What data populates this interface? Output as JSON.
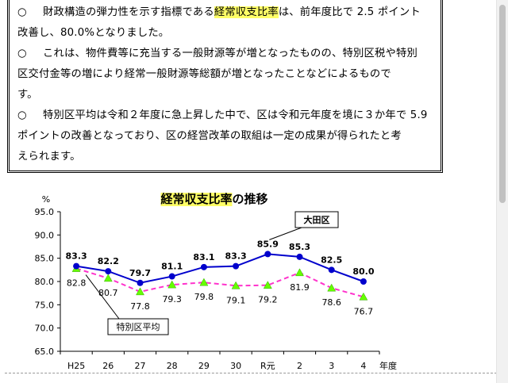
{
  "paragraphs": [
    {
      "bullet": "○",
      "lines": [
        [
          {
            "t": "財政構造の弾力性を示す指標である"
          },
          {
            "t": "経常収支比率",
            "hl": true
          },
          {
            "t": "は、前年度比で 2.5 ポイント"
          }
        ],
        [
          {
            "t": "改善し、80.0%となりました。"
          }
        ]
      ]
    },
    {
      "bullet": "○",
      "lines": [
        [
          {
            "t": "これは、物件費等に充当する一般財源等が増となったものの、特別区税や特別"
          }
        ],
        [
          {
            "t": "区交付金等の増により経常一般財源等総額が増となったことなどによるもので"
          }
        ],
        [
          {
            "t": "す。"
          }
        ]
      ]
    },
    {
      "bullet": "○",
      "lines": [
        [
          {
            "t": "特別区平均は令和２年度に急上昇した中で、区は令和元年度を境に３か年で 5.9"
          }
        ],
        [
          {
            "t": "ポイントの改善となっており、区の経営改革の取組は一定の成果が得られたと考"
          }
        ],
        [
          {
            "t": "えられます。"
          }
        ]
      ]
    }
  ],
  "chart_data": {
    "type": "line",
    "title_highlight": "経常収支比率",
    "title_rest": "の推移",
    "ylabel": "%",
    "xlabel": "年度",
    "ylim": [
      65.0,
      95.0
    ],
    "yticks": [
      "95.0",
      "90.0",
      "85.0",
      "80.0",
      "75.0",
      "70.0",
      "65.0"
    ],
    "categories": [
      "H25",
      "26",
      "27",
      "28",
      "29",
      "30",
      "R元",
      "2",
      "3",
      "4"
    ],
    "series": [
      {
        "name": "大田区",
        "color": "#0000cc",
        "values": [
          83.3,
          82.2,
          79.7,
          81.1,
          83.1,
          83.3,
          85.9,
          85.3,
          82.5,
          80.0
        ],
        "labels": [
          "83.3",
          "82.2",
          "79.7",
          "81.1",
          "83.1",
          "83.3",
          "85.9",
          "85.3",
          "82.5",
          "80.0"
        ]
      },
      {
        "name": "特別区平均",
        "color": "#ff33cc",
        "marker_color": "#66ff00",
        "values": [
          82.8,
          80.7,
          77.8,
          79.3,
          79.8,
          79.1,
          79.2,
          81.9,
          78.6,
          76.7
        ],
        "labels": [
          "82.8",
          "80.7",
          "77.8",
          "79.3",
          "79.8",
          "79.1",
          "79.2",
          "81.9",
          "78.6",
          "76.7"
        ]
      }
    ]
  }
}
